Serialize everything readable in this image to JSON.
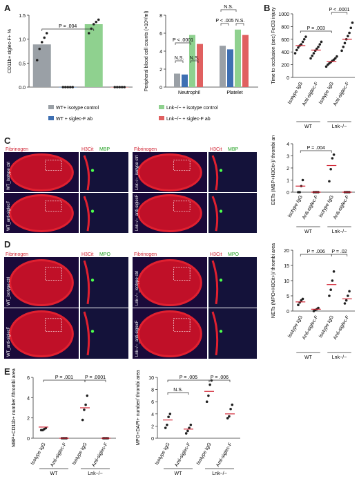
{
  "panels": {
    "A": "A",
    "B": "B",
    "C": "C",
    "D": "D",
    "E": "E"
  },
  "colors": {
    "wt_isotype": "#9aa0a6",
    "wt_siglec": "#3e6fb2",
    "lnk_isotype": "#8fd18f",
    "lnk_siglec": "#e06060",
    "nets_red": "#d02030",
    "marker": "#222222"
  },
  "legend": [
    {
      "label": "WT+ isotype control",
      "color": "#9aa0a6"
    },
    {
      "label": "Lnk−/− + isotype control",
      "color": "#8fd18f"
    },
    {
      "label": "WT + siglec-F ab",
      "color": "#3e6fb2"
    },
    {
      "label": "Lnk−/− + siglec-F ab",
      "color": "#e06060"
    }
  ],
  "group_labels": {
    "wt": "WT",
    "lnk": "Lnk−/−"
  },
  "conditions": [
    "Isotype IgG",
    "Anti-siglec-F",
    "Isotype IgG",
    "Anti-siglec-F"
  ],
  "chart_data": [
    {
      "id": "A1",
      "type": "bar",
      "ylabel": "CD11b+ siglec-F+ %",
      "ylim": [
        0,
        1.6
      ],
      "yticks": [
        "0.0",
        "0.5",
        "1.0",
        "1.5"
      ],
      "values": [
        0.95,
        0.0,
        1.4,
        0.0
      ],
      "points": [
        [
          0.6,
          0.85,
          1.0,
          1.1,
          1.2
        ],
        [
          0,
          0,
          0,
          0,
          0
        ],
        [
          1.2,
          1.3,
          1.4,
          1.45,
          1.5
        ],
        [
          0,
          0,
          0,
          0,
          0
        ]
      ],
      "annotations": [
        {
          "text": "P = .004"
        }
      ]
    },
    {
      "id": "A2",
      "type": "bar",
      "ylabel": "Peripheral blood cell counts (×10⁶/ml)",
      "categories": [
        "Neutrophil",
        "Platelet"
      ],
      "yticks": [
        "0",
        "2",
        "4",
        "6",
        "8"
      ],
      "series": [
        {
          "values": [
            1.5,
            230
          ]
        },
        {
          "values": [
            1.4,
            210
          ]
        },
        {
          "values": [
            5.8,
            320
          ]
        },
        {
          "values": [
            4.8,
            290
          ]
        }
      ],
      "annotations": [
        {
          "text": "N.S."
        },
        {
          "text": "P < .0001"
        },
        {
          "text": "N.S."
        },
        {
          "text": "P < .005"
        },
        {
          "text": "N.S."
        },
        {
          "text": "N.S."
        }
      ]
    },
    {
      "id": "B",
      "type": "scatter",
      "ylabel": "Time to occlusion (sec) FeCl3 injury",
      "ylim": [
        0,
        1000
      ],
      "yticks": [
        "0",
        "200",
        "400",
        "600",
        "800",
        "1000"
      ],
      "groups": [
        {
          "mean": 500,
          "points": [
            380,
            430,
            470,
            500,
            520,
            560,
            600,
            640
          ]
        },
        {
          "mean": 430,
          "points": [
            300,
            340,
            380,
            420,
            450,
            480,
            520,
            560
          ]
        },
        {
          "mean": 250,
          "points": [
            170,
            200,
            220,
            240,
            260,
            280,
            300,
            330
          ]
        },
        {
          "mean": 600,
          "points": [
            420,
            480,
            540,
            600,
            650,
            700,
            780,
            860
          ]
        }
      ],
      "annotations": [
        {
          "text": "P = .003"
        },
        {
          "text": "P < .0001"
        }
      ]
    },
    {
      "id": "C",
      "type": "scatter",
      "ylabel": "EETs (MBP+H3Cit+)/ thrombi area",
      "ylim": [
        0,
        4
      ],
      "yticks": [
        "0",
        "1",
        "2",
        "3",
        "4"
      ],
      "groups": [
        {
          "mean": 0.5,
          "points": [
            0,
            0,
            0.5,
            1
          ]
        },
        {
          "mean": 0,
          "points": [
            0,
            0,
            0,
            0
          ]
        },
        {
          "mean": 2.2,
          "points": [
            0.9,
            1.9,
            2.8,
            3.1
          ]
        },
        {
          "mean": 0,
          "points": [
            0,
            0,
            0,
            0
          ]
        }
      ],
      "annotations": [
        {
          "text": "P = .004"
        }
      ]
    },
    {
      "id": "D",
      "type": "scatter",
      "ylabel": "NETs (MPO+H3Cit+)/ thrombi area",
      "ylim": [
        0,
        20
      ],
      "yticks": [
        "0",
        "5",
        "10",
        "15",
        "20"
      ],
      "groups": [
        {
          "mean": 3,
          "points": [
            2,
            2.8,
            3.5,
            4
          ]
        },
        {
          "mean": 0.6,
          "points": [
            0,
            0.3,
            0.6,
            1
          ]
        },
        {
          "mean": 8.7,
          "points": [
            5,
            7,
            10,
            13
          ]
        },
        {
          "mean": 4,
          "points": [
            2.5,
            3.5,
            5,
            6.5
          ]
        }
      ],
      "annotations": [
        {
          "text": "P = .006"
        },
        {
          "text": "P = .02"
        }
      ]
    },
    {
      "id": "E1",
      "type": "scatter",
      "ylabel": "MBP+CD11b+ number /thrombi area",
      "ylim": [
        0,
        6
      ],
      "yticks": [
        "0",
        "2",
        "4",
        "6"
      ],
      "groups": [
        {
          "mean": 1.1,
          "points": [
            0.8,
            0.8,
            0.9,
            1.0
          ]
        },
        {
          "mean": 0,
          "points": [
            0,
            0,
            0,
            0
          ]
        },
        {
          "mean": 3,
          "points": [
            1.8,
            2.8,
            3.3,
            4.2
          ]
        },
        {
          "mean": 0,
          "points": [
            0,
            0,
            0,
            0
          ]
        }
      ],
      "annotations": [
        {
          "text": "P = .001"
        },
        {
          "text": "P = .0001"
        }
      ]
    },
    {
      "id": "E2",
      "type": "scatter",
      "ylabel": "MPO+DAPI+ number/ thrombi area",
      "ylim": [
        0,
        10
      ],
      "yticks": [
        "0",
        "2",
        "4",
        "6",
        "8",
        "10"
      ],
      "groups": [
        {
          "mean": 3,
          "points": [
            1.7,
            2.2,
            3.5,
            4
          ]
        },
        {
          "mean": 1.5,
          "points": [
            0.8,
            1.2,
            1.7,
            2.2
          ]
        },
        {
          "mean": 7.7,
          "points": [
            6,
            7,
            8.8,
            9.5
          ]
        },
        {
          "mean": 4,
          "points": [
            3.3,
            3.6,
            4.8,
            5.5
          ]
        }
      ],
      "annotations": [
        {
          "text": "N.S."
        },
        {
          "text": "P = .005"
        },
        {
          "text": "P = .006"
        }
      ]
    }
  ],
  "micro": {
    "c_left": {
      "stain1": "Fibrinogen",
      "stain2": "H3Cit",
      "stain3": "MBP",
      "row1": "WT_isotype ctrl",
      "row2": "WT_anti-siglecF"
    },
    "c_right": {
      "stain1": "Fibrinogen",
      "stain2": "H3Cit",
      "stain3": "MBP",
      "row1": "Lnk−/−_isotype ctrl",
      "row2": "Lnk−/−_anti-siglecF"
    },
    "d_left": {
      "stain1": "Fibrinogen",
      "stain2": "H3Cit",
      "stain3": "MPO",
      "row1": "WT_isotype ctrl",
      "row2": "WT_anti-siglecF"
    },
    "d_right": {
      "stain1": "Fibrinogen",
      "stain2": "H3Cit",
      "stain3": "MPO",
      "row1": "Lnk−/−_isotype ctrl",
      "row2": "Lnk−/−_anti-siglecF"
    }
  }
}
